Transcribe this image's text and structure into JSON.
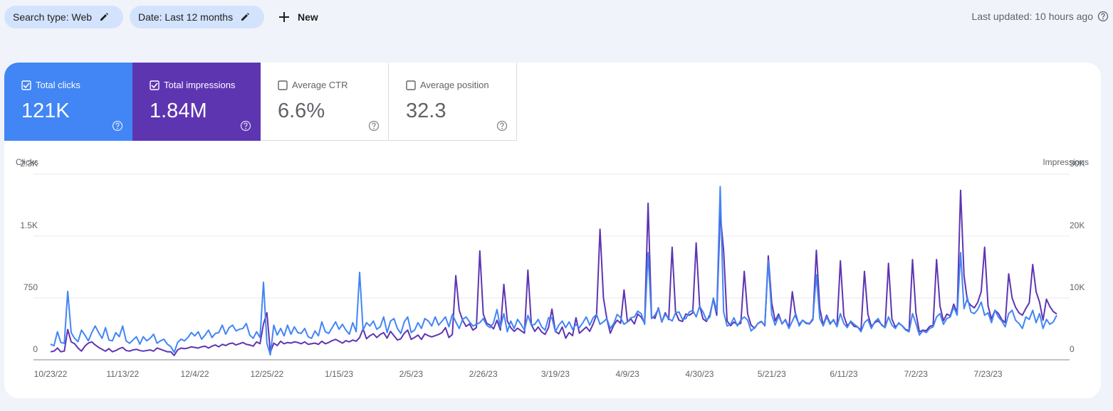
{
  "filters": [
    {
      "label": "Search type: Web"
    },
    {
      "label": "Date: Last 12 months"
    }
  ],
  "new_button": "New",
  "last_updated": "Last updated: 10 hours ago",
  "metrics": [
    {
      "label": "Total clicks",
      "value": "121K",
      "checked": true,
      "color": "#4285f4"
    },
    {
      "label": "Total impressions",
      "value": "1.84M",
      "checked": true,
      "color": "#5e35b1"
    },
    {
      "label": "Average CTR",
      "value": "6.6%",
      "checked": false
    },
    {
      "label": "Average position",
      "value": "32.3",
      "checked": false
    }
  ],
  "chart_data": {
    "type": "line",
    "grid": true,
    "categories": [
      "10/23/22",
      null,
      null,
      null,
      null,
      null,
      null,
      null,
      null,
      null,
      null,
      null,
      null,
      null,
      null,
      null,
      null,
      null,
      null,
      null,
      null,
      "11/13/22",
      null,
      null,
      null,
      null,
      null,
      null,
      null,
      null,
      null,
      null,
      null,
      null,
      null,
      null,
      null,
      null,
      null,
      null,
      null,
      null,
      "12/4/22",
      null,
      null,
      null,
      null,
      null,
      null,
      null,
      null,
      null,
      null,
      null,
      null,
      null,
      null,
      null,
      null,
      null,
      null,
      null,
      null,
      "12/25/22",
      null,
      null,
      null,
      null,
      null,
      null,
      null,
      null,
      null,
      null,
      null,
      null,
      null,
      null,
      null,
      null,
      null,
      null,
      null,
      null,
      "1/15/23",
      null,
      null,
      null,
      null,
      null,
      null,
      null,
      null,
      null,
      null,
      null,
      null,
      null,
      null,
      null,
      null,
      null,
      null,
      null,
      null,
      "2/5/23",
      null,
      null,
      null,
      null,
      null,
      null,
      null,
      null,
      null,
      null,
      null,
      null,
      null,
      null,
      null,
      null,
      null,
      null,
      null,
      null,
      "2/26/23",
      null,
      null,
      null,
      null,
      null,
      null,
      null,
      null,
      null,
      null,
      null,
      null,
      null,
      null,
      null,
      null,
      null,
      null,
      null,
      null,
      "3/19/23",
      null,
      null,
      null,
      null,
      null,
      null,
      null,
      null,
      null,
      null,
      null,
      null,
      null,
      null,
      null,
      null,
      null,
      null,
      null,
      null,
      "4/9/23",
      null,
      null,
      null,
      null,
      null,
      null,
      null,
      null,
      null,
      null,
      null,
      null,
      null,
      null,
      null,
      null,
      null,
      null,
      null,
      null,
      "4/30/23",
      null,
      null,
      null,
      null,
      null,
      null,
      null,
      null,
      null,
      null,
      null,
      null,
      null,
      null,
      null,
      null,
      null,
      null,
      null,
      null,
      "5/21/23",
      null,
      null,
      null,
      null,
      null,
      null,
      null,
      null,
      null,
      null,
      null,
      null,
      null,
      null,
      null,
      null,
      null,
      null,
      null,
      null,
      "6/11/23",
      null,
      null,
      null,
      null,
      null,
      null,
      null,
      null,
      null,
      null,
      null,
      null,
      null,
      null,
      null,
      null,
      null,
      null,
      null,
      null,
      "7/2/23",
      null,
      null,
      null,
      null,
      null,
      null,
      null,
      null,
      null,
      null,
      null,
      null,
      null,
      null,
      null,
      null,
      null,
      null,
      null,
      null,
      "7/23/23",
      null,
      null,
      null,
      null,
      null,
      null,
      null,
      null,
      null,
      null,
      null,
      null,
      null,
      null,
      null,
      null,
      null,
      null,
      null,
      null
    ],
    "ylim": [
      0,
      2250
    ],
    "yticks": [
      0,
      750,
      {
        "value": 1500,
        "label": "1.5K"
      },
      {
        "value": 2250,
        "label": "2.3K"
      }
    ],
    "y2lim": [
      0,
      30000
    ],
    "y2ticks": [
      0,
      {
        "value": 10000,
        "label": "10K"
      },
      {
        "value": 20000,
        "label": "20K"
      },
      {
        "value": 30000,
        "label": "30K"
      }
    ],
    "series": [
      {
        "name": "Clicks",
        "color": "#4285f4",
        "values": [
          190,
          170,
          340,
          210,
          200,
          830,
          330,
          260,
          220,
          360,
          300,
          230,
          330,
          410,
          330,
          260,
          390,
          240,
          230,
          330,
          280,
          410,
          230,
          200,
          240,
          280,
          190,
          280,
          230,
          260,
          310,
          200,
          230,
          250,
          190,
          160,
          90,
          210,
          250,
          230,
          270,
          330,
          290,
          340,
          250,
          300,
          360,
          270,
          320,
          330,
          420,
          310,
          390,
          420,
          350,
          370,
          380,
          440,
          300,
          260,
          340,
          270,
          940,
          200,
          60,
          420,
          300,
          380,
          290,
          420,
          310,
          400,
          330,
          320,
          380,
          280,
          260,
          350,
          290,
          460,
          340,
          320,
          390,
          460,
          370,
          430,
          360,
          310,
          450,
          340,
          1060,
          360,
          450,
          410,
          470,
          370,
          400,
          520,
          330,
          470,
          500,
          380,
          320,
          460,
          520,
          330,
          360,
          450,
          380,
          500,
          470,
          410,
          520,
          420,
          470,
          520,
          400,
          550,
          460,
          380,
          490,
          520,
          460,
          410,
          430,
          450,
          500,
          420,
          390,
          450,
          610,
          390,
          560,
          340,
          470,
          380,
          490,
          430,
          360,
          540,
          420,
          430,
          490,
          400,
          360,
          510,
          510,
          340,
          420,
          470,
          390,
          460,
          370,
          430,
          390,
          450,
          520,
          420,
          510,
          550,
          430,
          460,
          500,
          380,
          440,
          550,
          510,
          430,
          460,
          510,
          520,
          590,
          560,
          430,
          1300,
          500,
          540,
          620,
          460,
          550,
          500,
          470,
          570,
          580,
          490,
          500,
          580,
          600,
          520,
          650,
          580,
          480,
          520,
          750,
          590,
          2100,
          580,
          410,
          430,
          510,
          410,
          480,
          520,
          480,
          350,
          390,
          440,
          460,
          420,
          1200,
          550,
          420,
          530,
          440,
          480,
          380,
          470,
          560,
          410,
          480,
          450,
          440,
          500,
          1030,
          500,
          410,
          520,
          430,
          490,
          400,
          560,
          440,
          390,
          470,
          430,
          400,
          340,
          450,
          490,
          380,
          460,
          500,
          420,
          390,
          520,
          420,
          380,
          450,
          410,
          360,
          340,
          560,
          440,
          300,
          350,
          330,
          380,
          400,
          520,
          560,
          430,
          500,
          520,
          640,
          540,
          1300,
          620,
          750,
          580,
          560,
          610,
          700,
          540,
          570,
          450,
          600,
          520,
          470,
          400,
          560,
          600,
          480,
          440,
          380,
          520,
          490,
          600,
          450,
          560,
          380,
          490,
          430,
          460,
          540
        ]
      },
      {
        "name": "Impressions",
        "color": "#5e35b1",
        "axis": "y2",
        "values": [
          1300,
          1400,
          1900,
          1300,
          1400,
          4900,
          2900,
          2600,
          1900,
          1400,
          2200,
          2700,
          2900,
          2400,
          2000,
          1700,
          1400,
          1800,
          1300,
          1500,
          1800,
          2000,
          1500,
          1400,
          1600,
          1700,
          1500,
          1400,
          1500,
          1600,
          1400,
          1900,
          1700,
          1500,
          1300,
          1300,
          700,
          1600,
          1900,
          1800,
          1900,
          2100,
          2000,
          1900,
          2100,
          2200,
          1900,
          2200,
          2400,
          2100,
          2500,
          2300,
          2600,
          2700,
          2400,
          2600,
          2800,
          2500,
          2400,
          2200,
          2900,
          2600,
          5800,
          7600,
          1200,
          2700,
          2300,
          3000,
          2600,
          2800,
          2700,
          2900,
          2800,
          2600,
          2900,
          2500,
          2600,
          2700,
          2500,
          3000,
          2600,
          2800,
          3100,
          3300,
          3000,
          2700,
          3100,
          2900,
          3200,
          3000,
          3600,
          5000,
          3400,
          3900,
          4200,
          3600,
          4100,
          4400,
          3500,
          4600,
          3900,
          3200,
          3400,
          4300,
          4800,
          3300,
          3600,
          4000,
          3300,
          4200,
          3900,
          3700,
          3900,
          4100,
          4400,
          5200,
          3600,
          4100,
          13600,
          8000,
          6400,
          5400,
          5800,
          4800,
          5200,
          17600,
          7400,
          5900,
          5600,
          5000,
          6400,
          4800,
          12200,
          6300,
          5200,
          4600,
          5100,
          4700,
          4300,
          14500,
          5700,
          4600,
          5300,
          4500,
          4100,
          5200,
          8200,
          4600,
          4200,
          5300,
          3500,
          4400,
          3900,
          6800,
          4300,
          4800,
          5300,
          4600,
          5800,
          7300,
          21100,
          10000,
          6600,
          4300,
          5600,
          6400,
          5900,
          11300,
          6100,
          6600,
          5800,
          7400,
          6900,
          5900,
          25300,
          7000,
          6700,
          8400,
          6100,
          7600,
          6500,
          18200,
          7700,
          6400,
          6200,
          7400,
          7200,
          7600,
          18900,
          8800,
          6600,
          6200,
          7300,
          9800,
          7200,
          23700,
          17600,
          6300,
          5500,
          6100,
          5700,
          5900,
          14300,
          7400,
          5600,
          5100,
          5900,
          6200,
          5500,
          16800,
          9200,
          6300,
          7400,
          5800,
          6500,
          5200,
          11000,
          7000,
          5700,
          6400,
          5900,
          5800,
          6500,
          17700,
          8300,
          5600,
          7200,
          5900,
          6400,
          5400,
          16000,
          7100,
          5500,
          6100,
          5400,
          5300,
          4800,
          14300,
          7400,
          5400,
          6000,
          6300,
          5700,
          5200,
          15600,
          6600,
          5300,
          5900,
          5500,
          4900,
          4700,
          16200,
          7600,
          4500,
          4800,
          4700,
          5400,
          5600,
          16200,
          8700,
          6300,
          7400,
          7100,
          9000,
          7600,
          27400,
          13600,
          9500,
          8800,
          8400,
          9300,
          11000,
          18200,
          8700,
          6600,
          8000,
          7500,
          6500,
          6000,
          13900,
          10000,
          8500,
          7600,
          7200,
          8300,
          9200,
          15400,
          11000,
          9300,
          6400,
          9800,
          8600,
          7800,
          7400
        ]
      }
    ]
  }
}
